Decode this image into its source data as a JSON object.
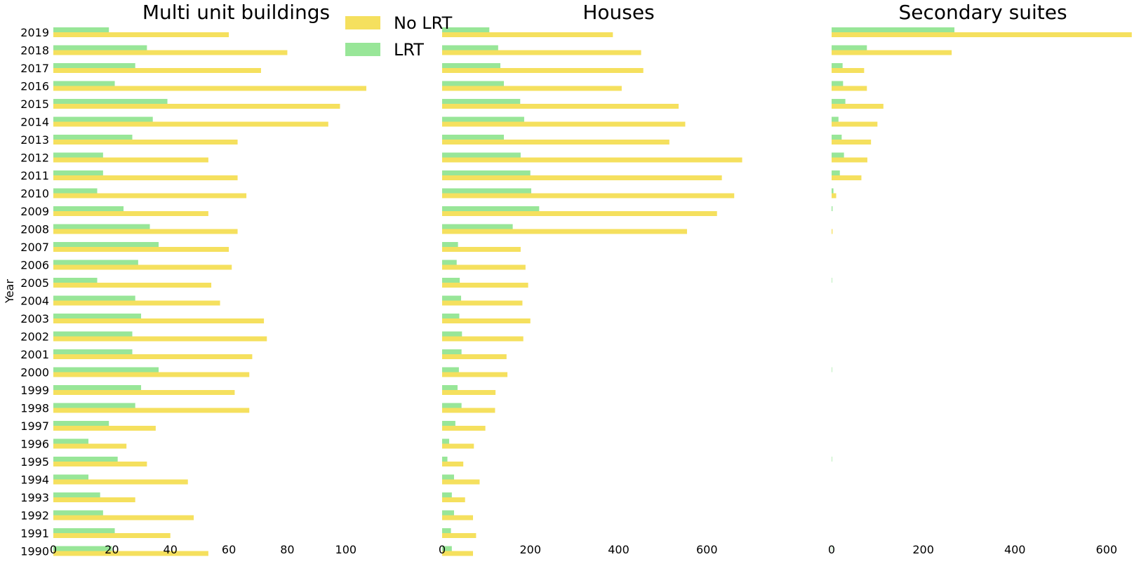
{
  "chart_data": [
    {
      "type": "bar",
      "orientation": "horizontal",
      "title": "Multi unit buildings",
      "ylabel": "Year",
      "categories": [
        "1990",
        "1991",
        "1992",
        "1993",
        "1994",
        "1995",
        "1996",
        "1997",
        "1998",
        "1999",
        "2000",
        "2001",
        "2002",
        "2003",
        "2004",
        "2005",
        "2006",
        "2007",
        "2008",
        "2009",
        "2010",
        "2011",
        "2012",
        "2013",
        "2014",
        "2015",
        "2016",
        "2017",
        "2018",
        "2019"
      ],
      "xlim": [
        0,
        125
      ],
      "xticks": [
        0,
        20,
        40,
        60,
        80,
        100
      ],
      "series": [
        {
          "name": "No LRT",
          "color": "#f5e05e",
          "values": [
            53,
            40,
            48,
            28,
            46,
            32,
            25,
            35,
            67,
            62,
            67,
            68,
            73,
            72,
            57,
            54,
            61,
            60,
            63,
            53,
            66,
            63,
            53,
            63,
            94,
            98,
            107,
            71,
            80,
            60
          ]
        },
        {
          "name": "LRT",
          "color": "#98e698",
          "values": [
            20,
            21,
            17,
            16,
            12,
            22,
            12,
            19,
            28,
            30,
            36,
            27,
            27,
            30,
            28,
            15,
            29,
            36,
            33,
            24,
            15,
            17,
            17,
            27,
            34,
            39,
            21,
            28,
            32,
            19
          ]
        }
      ]
    },
    {
      "type": "bar",
      "orientation": "horizontal",
      "title": "Houses",
      "categories": [
        "1990",
        "1991",
        "1992",
        "1993",
        "1994",
        "1995",
        "1996",
        "1997",
        "1998",
        "1999",
        "2000",
        "2001",
        "2002",
        "2003",
        "2004",
        "2005",
        "2006",
        "2007",
        "2008",
        "2009",
        "2010",
        "2011",
        "2012",
        "2013",
        "2014",
        "2015",
        "2016",
        "2017",
        "2018",
        "2019"
      ],
      "xlim": [
        0,
        800
      ],
      "xticks": [
        0,
        200,
        400,
        600
      ],
      "series": [
        {
          "name": "No LRT",
          "color": "#f5e05e",
          "values": [
            70,
            77,
            70,
            52,
            85,
            48,
            72,
            98,
            120,
            121,
            148,
            146,
            184,
            200,
            182,
            195,
            189,
            178,
            555,
            623,
            662,
            634,
            680,
            515,
            551,
            536,
            407,
            456,
            451,
            387
          ]
        },
        {
          "name": "LRT",
          "color": "#98e698",
          "values": [
            22,
            20,
            27,
            22,
            27,
            12,
            16,
            30,
            44,
            35,
            38,
            44,
            45,
            39,
            43,
            40,
            33,
            36,
            160,
            220,
            202,
            200,
            178,
            140,
            186,
            177,
            140,
            132,
            127,
            107
          ]
        }
      ]
    },
    {
      "type": "bar",
      "orientation": "horizontal",
      "title": "Secondary suites",
      "categories": [
        "1990",
        "1991",
        "1992",
        "1993",
        "1994",
        "1995",
        "1996",
        "1997",
        "1998",
        "1999",
        "2000",
        "2001",
        "2002",
        "2003",
        "2004",
        "2005",
        "2006",
        "2007",
        "2008",
        "2009",
        "2010",
        "2011",
        "2012",
        "2013",
        "2014",
        "2015",
        "2016",
        "2017",
        "2018",
        "2019"
      ],
      "xlim": [
        0,
        660
      ],
      "xticks": [
        0,
        200,
        400,
        600
      ],
      "series": [
        {
          "name": "No LRT",
          "color": "#f5e05e",
          "values": [
            0,
            0,
            0,
            0,
            0,
            0,
            0,
            0,
            0,
            0,
            0,
            0,
            0,
            0,
            0,
            0,
            0,
            0,
            2,
            0,
            10,
            65,
            78,
            86,
            100,
            113,
            77,
            71,
            262,
            655
          ]
        },
        {
          "name": "LRT",
          "color": "#98e698",
          "values": [
            1,
            0,
            0,
            0,
            0,
            1,
            0,
            0,
            0,
            0,
            1,
            0,
            0,
            0,
            0,
            1,
            0,
            0,
            0,
            2,
            4,
            18,
            27,
            22,
            15,
            30,
            25,
            24,
            77,
            268
          ]
        }
      ]
    }
  ],
  "legend": {
    "placement": "top-center",
    "items": [
      {
        "label": "No LRT",
        "color": "#f5e05e"
      },
      {
        "label": "LRT",
        "color": "#98e698"
      }
    ]
  }
}
